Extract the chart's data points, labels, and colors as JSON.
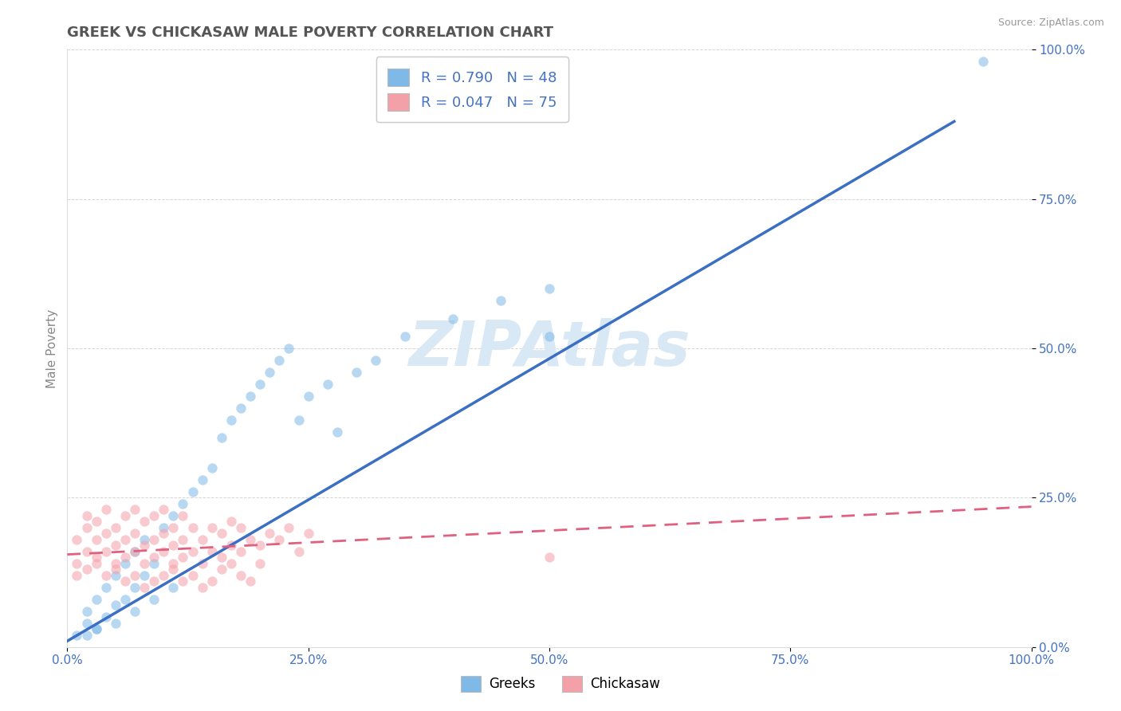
{
  "title": "GREEK VS CHICKASAW MALE POVERTY CORRELATION CHART",
  "source_text": "Source: ZipAtlas.com",
  "ylabel": "Male Poverty",
  "xlim": [
    0,
    1
  ],
  "ylim": [
    0,
    1
  ],
  "xticks": [
    0.0,
    0.25,
    0.5,
    0.75,
    1.0
  ],
  "yticks": [
    0.0,
    0.25,
    0.5,
    0.75,
    1.0
  ],
  "xticklabels": [
    "0.0%",
    "25.0%",
    "50.0%",
    "75.0%",
    "100.0%"
  ],
  "yticklabels": [
    "0.0%",
    "25.0%",
    "50.0%",
    "75.0%",
    "100.0%"
  ],
  "greek_color": "#7EB9E8",
  "chickasaw_color": "#F4A0A8",
  "greek_R": 0.79,
  "greek_N": 48,
  "chickasaw_R": 0.047,
  "chickasaw_N": 75,
  "watermark": "ZIPAtlas",
  "watermark_color": "#D8E8F5",
  "legend_label_greek": "Greeks",
  "legend_label_chickasaw": "Chickasaw",
  "greek_line_x": [
    0.0,
    0.92
  ],
  "greek_line_y": [
    0.01,
    0.88
  ],
  "chickasaw_line_x": [
    0.0,
    1.0
  ],
  "chickasaw_line_y": [
    0.155,
    0.235
  ],
  "background_color": "#FFFFFF",
  "grid_color": "#CCCCCC",
  "title_color": "#555555",
  "tick_color": "#4472C4",
  "marker_size": 80,
  "marker_alpha": 0.55,
  "greek_points_x": [
    0.01,
    0.02,
    0.02,
    0.03,
    0.03,
    0.04,
    0.04,
    0.05,
    0.05,
    0.06,
    0.06,
    0.07,
    0.07,
    0.08,
    0.08,
    0.09,
    0.1,
    0.11,
    0.12,
    0.13,
    0.14,
    0.15,
    0.16,
    0.17,
    0.18,
    0.19,
    0.2,
    0.21,
    0.22,
    0.23,
    0.24,
    0.25,
    0.27,
    0.28,
    0.3,
    0.32,
    0.35,
    0.4,
    0.45,
    0.5,
    0.02,
    0.03,
    0.05,
    0.07,
    0.09,
    0.11,
    0.95,
    0.5
  ],
  "greek_points_y": [
    0.02,
    0.04,
    0.06,
    0.03,
    0.08,
    0.05,
    0.1,
    0.07,
    0.12,
    0.08,
    0.14,
    0.1,
    0.16,
    0.12,
    0.18,
    0.14,
    0.2,
    0.22,
    0.24,
    0.26,
    0.28,
    0.3,
    0.35,
    0.38,
    0.4,
    0.42,
    0.44,
    0.46,
    0.48,
    0.5,
    0.38,
    0.42,
    0.44,
    0.36,
    0.46,
    0.48,
    0.52,
    0.55,
    0.58,
    0.6,
    0.02,
    0.03,
    0.04,
    0.06,
    0.08,
    0.1,
    0.98,
    0.52
  ],
  "chickasaw_points_x": [
    0.01,
    0.01,
    0.02,
    0.02,
    0.02,
    0.03,
    0.03,
    0.03,
    0.04,
    0.04,
    0.04,
    0.05,
    0.05,
    0.05,
    0.06,
    0.06,
    0.06,
    0.07,
    0.07,
    0.07,
    0.08,
    0.08,
    0.08,
    0.09,
    0.09,
    0.09,
    0.1,
    0.1,
    0.1,
    0.11,
    0.11,
    0.11,
    0.12,
    0.12,
    0.12,
    0.13,
    0.13,
    0.14,
    0.14,
    0.15,
    0.15,
    0.16,
    0.16,
    0.17,
    0.17,
    0.18,
    0.18,
    0.19,
    0.2,
    0.2,
    0.21,
    0.22,
    0.23,
    0.24,
    0.25,
    0.01,
    0.02,
    0.03,
    0.04,
    0.05,
    0.06,
    0.07,
    0.08,
    0.09,
    0.1,
    0.11,
    0.12,
    0.13,
    0.14,
    0.15,
    0.16,
    0.17,
    0.18,
    0.19,
    0.5
  ],
  "chickasaw_points_y": [
    0.14,
    0.18,
    0.16,
    0.2,
    0.22,
    0.15,
    0.18,
    0.21,
    0.16,
    0.19,
    0.23,
    0.14,
    0.17,
    0.2,
    0.15,
    0.18,
    0.22,
    0.16,
    0.19,
    0.23,
    0.14,
    0.17,
    0.21,
    0.15,
    0.18,
    0.22,
    0.16,
    0.19,
    0.23,
    0.14,
    0.17,
    0.2,
    0.15,
    0.18,
    0.22,
    0.16,
    0.2,
    0.14,
    0.18,
    0.16,
    0.2,
    0.15,
    0.19,
    0.17,
    0.21,
    0.16,
    0.2,
    0.18,
    0.14,
    0.17,
    0.19,
    0.18,
    0.2,
    0.16,
    0.19,
    0.12,
    0.13,
    0.14,
    0.12,
    0.13,
    0.11,
    0.12,
    0.1,
    0.11,
    0.12,
    0.13,
    0.11,
    0.12,
    0.1,
    0.11,
    0.13,
    0.14,
    0.12,
    0.11,
    0.15
  ]
}
